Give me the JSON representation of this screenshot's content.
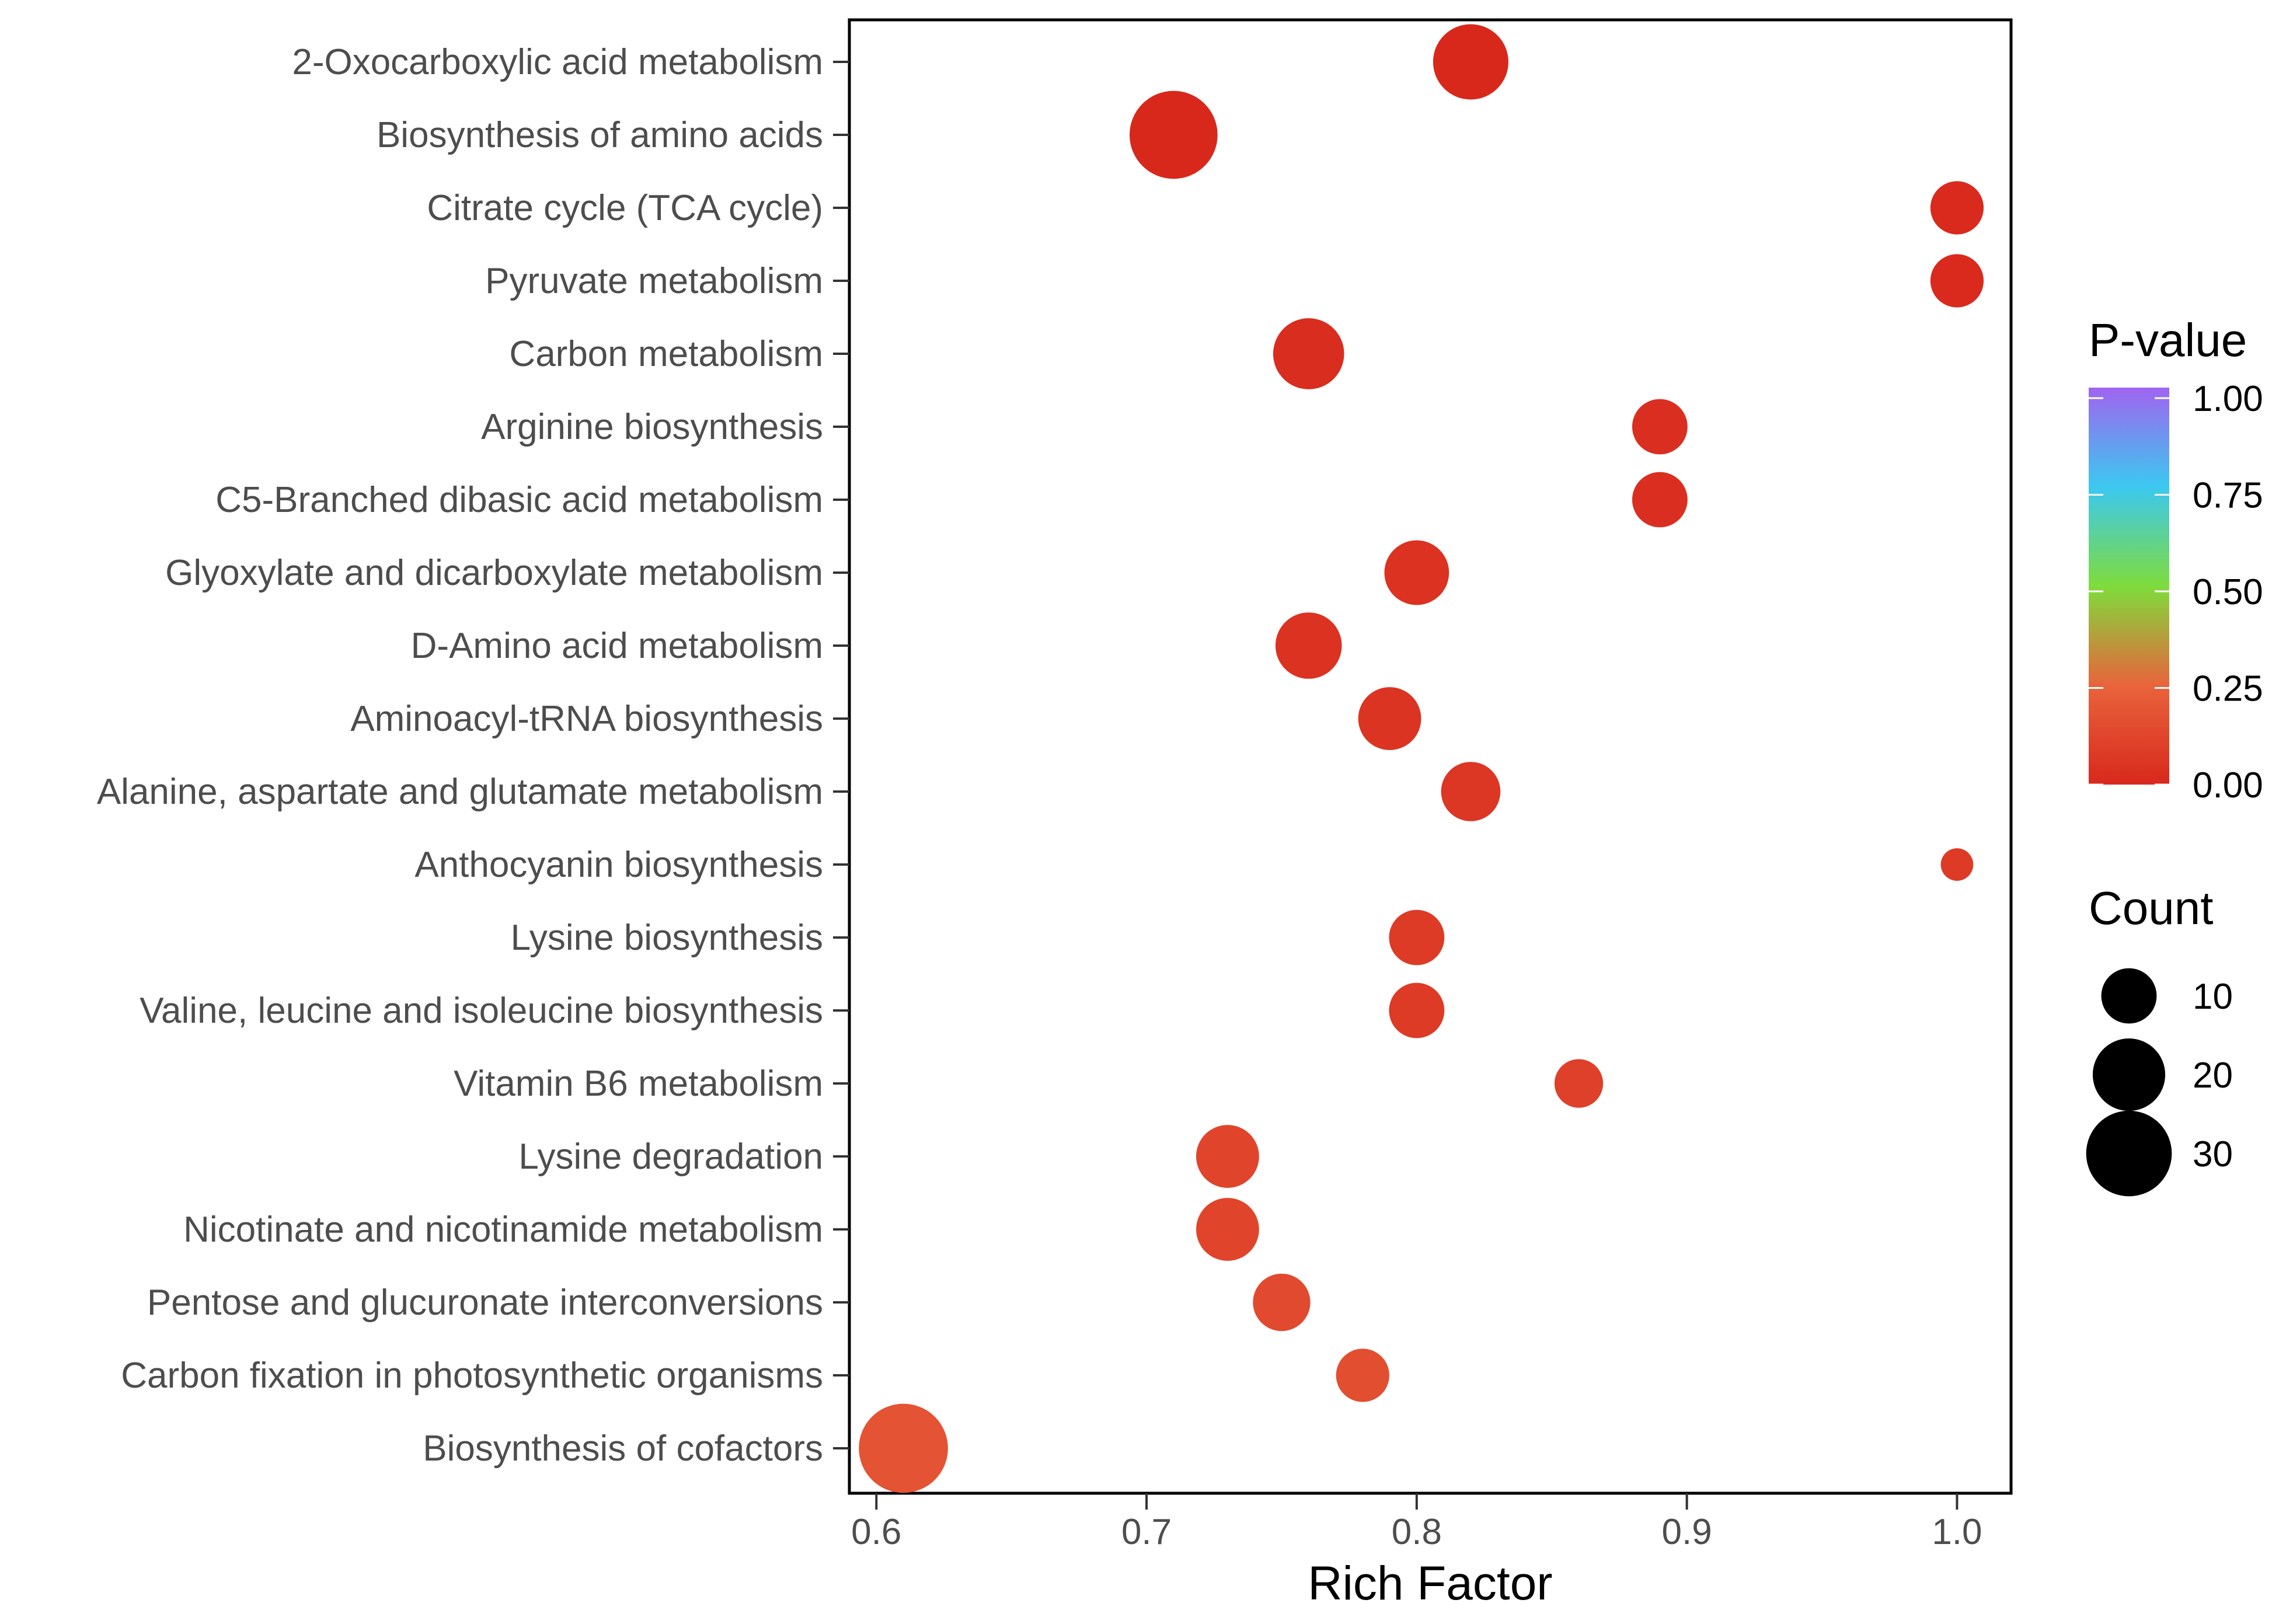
{
  "chart_data": {
    "type": "bubble",
    "title": "",
    "xlabel": "Rich Factor",
    "ylabel": "",
    "xlim": [
      0.59,
      1.02
    ],
    "xticks": [
      0.6,
      0.7,
      0.8,
      0.9,
      1.0
    ],
    "xtick_labels": [
      "0.6",
      "0.7",
      "0.8",
      "0.9",
      "1.0"
    ],
    "grid": false,
    "points": [
      {
        "pathway": "2-Oxocarboxylic acid metabolism",
        "rich_factor": 0.82,
        "count": 22,
        "p_value": 0.0
      },
      {
        "pathway": "Biosynthesis of amino acids",
        "rich_factor": 0.71,
        "count": 32,
        "p_value": 0.0
      },
      {
        "pathway": "Citrate cycle (TCA cycle)",
        "rich_factor": 1.0,
        "count": 9,
        "p_value": 0.01
      },
      {
        "pathway": "Pyruvate metabolism",
        "rich_factor": 1.0,
        "count": 9,
        "p_value": 0.01
      },
      {
        "pathway": "Carbon metabolism",
        "rich_factor": 0.76,
        "count": 19,
        "p_value": 0.02
      },
      {
        "pathway": "Arginine biosynthesis",
        "rich_factor": 0.89,
        "count": 10,
        "p_value": 0.03
      },
      {
        "pathway": "C5-Branched dibasic acid metabolism",
        "rich_factor": 0.89,
        "count": 10,
        "p_value": 0.03
      },
      {
        "pathway": "Glyoxylate and dicarboxylate metabolism",
        "rich_factor": 0.8,
        "count": 15,
        "p_value": 0.04
      },
      {
        "pathway": "D-Amino acid metabolism",
        "rich_factor": 0.76,
        "count": 16,
        "p_value": 0.04
      },
      {
        "pathway": "Aminoacyl-tRNA biosynthesis",
        "rich_factor": 0.79,
        "count": 14,
        "p_value": 0.05
      },
      {
        "pathway": "Alanine, aspartate and glutamate metabolism",
        "rich_factor": 0.82,
        "count": 12,
        "p_value": 0.06
      },
      {
        "pathway": "Anthocyanin biosynthesis",
        "rich_factor": 1.0,
        "count": 2,
        "p_value": 0.08
      },
      {
        "pathway": "Lysine biosynthesis",
        "rich_factor": 0.8,
        "count": 10,
        "p_value": 0.08
      },
      {
        "pathway": "Valine, leucine and isoleucine biosynthesis",
        "rich_factor": 0.8,
        "count": 10,
        "p_value": 0.08
      },
      {
        "pathway": "Vitamin B6 metabolism",
        "rich_factor": 0.86,
        "count": 7,
        "p_value": 0.1
      },
      {
        "pathway": "Lysine degradation",
        "rich_factor": 0.73,
        "count": 14,
        "p_value": 0.12
      },
      {
        "pathway": "Nicotinate and nicotinamide metabolism",
        "rich_factor": 0.73,
        "count": 14,
        "p_value": 0.12
      },
      {
        "pathway": "Pentose and glucuronate interconversions",
        "rich_factor": 0.75,
        "count": 11,
        "p_value": 0.14
      },
      {
        "pathway": "Carbon fixation in photosynthetic organisms",
        "rich_factor": 0.78,
        "count": 9,
        "p_value": 0.16
      },
      {
        "pathway": "Biosynthesis of cofactors",
        "rich_factor": 0.61,
        "count": 33,
        "p_value": 0.18
      }
    ],
    "color_legend": {
      "title": "P-value",
      "ticks": [
        1.0,
        0.75,
        0.5,
        0.25,
        0.0
      ],
      "tick_labels": [
        "1.00",
        "0.75",
        "0.50",
        "0.25",
        "0.00"
      ],
      "colors": [
        "#d8281c",
        "#e8643c",
        "#7fdc3c",
        "#3cc8f0",
        "#a064f0"
      ]
    },
    "size_legend": {
      "title": "Count",
      "values": [
        10,
        20,
        30
      ],
      "labels": [
        "10",
        "20",
        "30"
      ]
    },
    "palette": {
      "axis": "#000000",
      "tick": "#333333",
      "legend_marker": "#000000"
    }
  }
}
